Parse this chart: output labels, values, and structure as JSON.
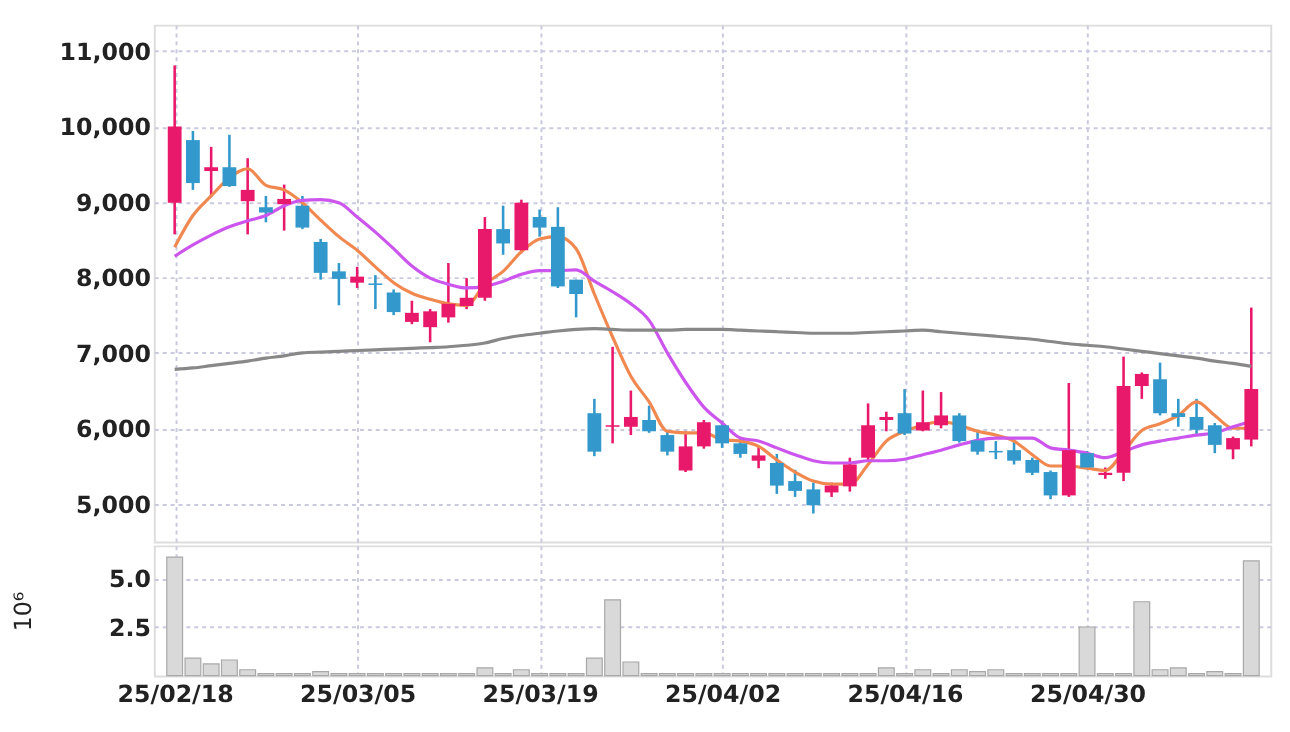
{
  "chart_data": [
    {
      "type": "candlestick",
      "tick_labels": "y",
      "grid": true,
      "categories": [
        null,
        null,
        null,
        null,
        null,
        null,
        null,
        null,
        null,
        null,
        null,
        null,
        null,
        null,
        null,
        null,
        null,
        null,
        null,
        null,
        null,
        null,
        null,
        null,
        null,
        null,
        null,
        null,
        null,
        null,
        null,
        null,
        null,
        null,
        null,
        null,
        null,
        null,
        null,
        null,
        null,
        null,
        null,
        null,
        null,
        null,
        null,
        null,
        null,
        null,
        null,
        null,
        null,
        null,
        null,
        null,
        null,
        null,
        null,
        null
      ],
      "ohlc": [
        [
          8990,
          10810,
          8570,
          10000
        ],
        [
          9820,
          9940,
          9160,
          9250
        ],
        [
          9410,
          9730,
          9080,
          9460
        ],
        [
          9460,
          9890,
          9200,
          9210
        ],
        [
          9010,
          9580,
          8570,
          9160
        ],
        [
          8930,
          9080,
          8730,
          8860
        ],
        [
          8970,
          9230,
          8620,
          9040
        ],
        [
          8950,
          9080,
          8640,
          8660
        ],
        [
          8470,
          8510,
          7970,
          8060
        ],
        [
          8080,
          8190,
          7630,
          7980
        ],
        [
          7930,
          8140,
          7860,
          8010
        ],
        [
          7920,
          8030,
          7580,
          7900
        ],
        [
          7800,
          7840,
          7500,
          7540
        ],
        [
          7410,
          7690,
          7380,
          7530
        ],
        [
          7340,
          7580,
          7140,
          7550
        ],
        [
          7470,
          8190,
          7400,
          7650
        ],
        [
          7620,
          7990,
          7580,
          7730
        ],
        [
          7730,
          8800,
          7690,
          8640
        ],
        [
          8640,
          8950,
          8300,
          8450
        ],
        [
          8360,
          9030,
          8320,
          8990
        ],
        [
          8800,
          8900,
          8540,
          8660
        ],
        [
          8670,
          8930,
          7860,
          7880
        ],
        [
          7970,
          7970,
          7470,
          7780
        ],
        [
          6200,
          6390,
          5630,
          5690
        ],
        [
          6020,
          7080,
          5800,
          6040
        ],
        [
          6020,
          6500,
          5910,
          6150
        ],
        [
          6110,
          6300,
          5940,
          5960
        ],
        [
          5910,
          5960,
          5640,
          5690
        ],
        [
          5440,
          5960,
          5420,
          5760
        ],
        [
          5760,
          6110,
          5730,
          6080
        ],
        [
          6040,
          6100,
          5740,
          5800
        ],
        [
          5800,
          5870,
          5610,
          5660
        ],
        [
          5570,
          5760,
          5470,
          5640
        ],
        [
          5540,
          5660,
          5130,
          5240
        ],
        [
          5300,
          5450,
          5090,
          5170
        ],
        [
          5190,
          5280,
          4870,
          4980
        ],
        [
          5150,
          5280,
          5090,
          5240
        ],
        [
          5230,
          5610,
          5160,
          5520
        ],
        [
          5610,
          6330,
          5570,
          6040
        ],
        [
          6110,
          6220,
          5960,
          6150
        ],
        [
          6200,
          6520,
          5910,
          5930
        ],
        [
          5970,
          6500,
          5960,
          6080
        ],
        [
          6040,
          6480,
          6000,
          6170
        ],
        [
          6170,
          6200,
          5810,
          5830
        ],
        [
          5840,
          5960,
          5650,
          5690
        ],
        [
          5700,
          5830,
          5590,
          5680
        ],
        [
          5710,
          5850,
          5520,
          5570
        ],
        [
          5580,
          5610,
          5380,
          5410
        ],
        [
          5420,
          5440,
          5060,
          5110
        ],
        [
          5110,
          6600,
          5090,
          5710
        ],
        [
          5670,
          5700,
          5450,
          5480
        ],
        [
          5380,
          5480,
          5330,
          5410
        ],
        [
          5410,
          6950,
          5300,
          6560
        ],
        [
          6560,
          6740,
          6390,
          6720
        ],
        [
          6650,
          6870,
          6170,
          6200
        ],
        [
          6200,
          6390,
          6020,
          6150
        ],
        [
          6150,
          6390,
          5910,
          5980
        ],
        [
          6040,
          6070,
          5670,
          5780
        ],
        [
          5720,
          5890,
          5590,
          5870
        ],
        [
          5850,
          7600,
          5760,
          6520
        ]
      ],
      "colors": [
        "#e8196a",
        "#3399cc",
        "#e8196a",
        "#3399cc",
        "#e8196a",
        "#3399cc",
        "#e8196a",
        "#3399cc",
        "#3399cc",
        "#3399cc",
        "#e8196a",
        "#3399cc",
        "#3399cc",
        "#e8196a",
        "#e8196a",
        "#e8196a",
        "#e8196a",
        "#e8196a",
        "#3399cc",
        "#e8196a",
        "#3399cc",
        "#3399cc",
        "#3399cc",
        "#3399cc",
        "#e8196a",
        "#e8196a",
        "#3399cc",
        "#3399cc",
        "#e8196a",
        "#e8196a",
        "#3399cc",
        "#3399cc",
        "#e8196a",
        "#3399cc",
        "#3399cc",
        "#3399cc",
        "#e8196a",
        "#e8196a",
        "#e8196a",
        "#e8196a",
        "#3399cc",
        "#e8196a",
        "#e8196a",
        "#3399cc",
        "#3399cc",
        "#3399cc",
        "#3399cc",
        "#3399cc",
        "#3399cc",
        "#e8196a",
        "#3399cc",
        "#e8196a",
        "#e8196a",
        "#e8196a",
        "#3399cc",
        "#3399cc",
        "#3399cc",
        "#3399cc",
        "#e8196a",
        "#e8196a"
      ],
      "series": [
        {
          "type": "line",
          "color": "#f08850",
          "values": [
            8400,
            8820,
            9080,
            9320,
            9440,
            9220,
            9160,
            8990,
            8760,
            8540,
            8360,
            8140,
            7930,
            7790,
            7710,
            7650,
            7630,
            7910,
            8080,
            8340,
            8510,
            8540,
            8380,
            7780,
            7210,
            6690,
            6350,
            5960,
            5940,
            5940,
            5850,
            5830,
            5760,
            5580,
            5420,
            5300,
            5260,
            5260,
            5520,
            5830,
            5960,
            6040,
            6090,
            6040,
            5960,
            5910,
            5830,
            5650,
            5500,
            5500,
            5470,
            5440,
            5690,
            5970,
            6060,
            6170,
            6350,
            6170,
            6000,
            6000
          ]
        },
        {
          "type": "line",
          "color": "#cc55ee",
          "values": [
            8280,
            8430,
            8560,
            8670,
            8750,
            8820,
            8950,
            9020,
            9030,
            8990,
            8800,
            8600,
            8380,
            8150,
            7990,
            7910,
            7860,
            7880,
            7950,
            8040,
            8090,
            8090,
            8100,
            7950,
            7810,
            7650,
            7430,
            7000,
            6610,
            6280,
            6070,
            5870,
            5830,
            5740,
            5650,
            5570,
            5540,
            5540,
            5570,
            5570,
            5590,
            5650,
            5710,
            5780,
            5840,
            5870,
            5870,
            5870,
            5740,
            5710,
            5670,
            5610,
            5690,
            5780,
            5830,
            5870,
            5910,
            5940,
            6020,
            6090
          ]
        },
        {
          "type": "line",
          "color": "#888888",
          "values": [
            6780,
            6800,
            6830,
            6860,
            6890,
            6930,
            6960,
            7000,
            7010,
            7020,
            7030,
            7040,
            7050,
            7060,
            7070,
            7080,
            7100,
            7130,
            7190,
            7230,
            7260,
            7290,
            7310,
            7320,
            7310,
            7300,
            7300,
            7300,
            7310,
            7310,
            7310,
            7300,
            7290,
            7280,
            7270,
            7260,
            7260,
            7260,
            7270,
            7280,
            7290,
            7300,
            7280,
            7260,
            7240,
            7220,
            7200,
            7180,
            7150,
            7120,
            7100,
            7080,
            7050,
            7020,
            6990,
            6960,
            6930,
            6890,
            6860,
            6820
          ]
        }
      ],
      "ylim": [
        4500,
        11350
      ],
      "yticks": [
        {
          "value": 5000,
          "label": "5,000"
        },
        {
          "value": 6000,
          "label": "6,000"
        },
        {
          "value": 7000,
          "label": "7,000"
        },
        {
          "value": 8000,
          "label": "8,000"
        },
        {
          "value": 9000,
          "label": "9,000"
        },
        {
          "value": 10000,
          "label": "10,000"
        },
        {
          "value": 11000,
          "label": "11,000"
        }
      ]
    },
    {
      "type": "bar",
      "grid": true,
      "ylabel": "10⁶",
      "color": "#d9d9d9",
      "categories": [
        "25/02/18",
        null,
        null,
        null,
        null,
        null,
        null,
        null,
        null,
        null,
        "25/03/05",
        null,
        null,
        null,
        null,
        null,
        null,
        null,
        null,
        null,
        "25/03/19",
        null,
        null,
        null,
        null,
        null,
        null,
        null,
        null,
        null,
        "25/04/02",
        null,
        null,
        null,
        null,
        null,
        null,
        null,
        null,
        null,
        "25/04/16",
        null,
        null,
        null,
        null,
        null,
        null,
        null,
        null,
        null,
        "25/04/30",
        null,
        null,
        null,
        null,
        null,
        null,
        null,
        null,
        null
      ],
      "values": [
        6.1,
        0.9,
        0.6,
        0.8,
        0.3,
        0.1,
        0.1,
        0.1,
        0.2,
        0.1,
        0.1,
        0.1,
        0.1,
        0.1,
        0.1,
        0.1,
        0.1,
        0.4,
        0.1,
        0.3,
        0.1,
        0.1,
        0.1,
        0.9,
        3.9,
        0.7,
        0.1,
        0.1,
        0.1,
        0.1,
        0.1,
        0.1,
        0.1,
        0.1,
        0.1,
        0.1,
        0.1,
        0.1,
        0.1,
        0.4,
        0.1,
        0.3,
        0.1,
        0.3,
        0.2,
        0.3,
        0.1,
        0.1,
        0.1,
        0.1,
        2.5,
        0.1,
        0.1,
        3.8,
        0.3,
        0.4,
        0.1,
        0.2,
        0.1,
        5.9
      ],
      "ylim": [
        0,
        6.7
      ],
      "yticks": [
        2.5,
        {
          "value": 5,
          "label": "5.0"
        }
      ]
    }
  ]
}
